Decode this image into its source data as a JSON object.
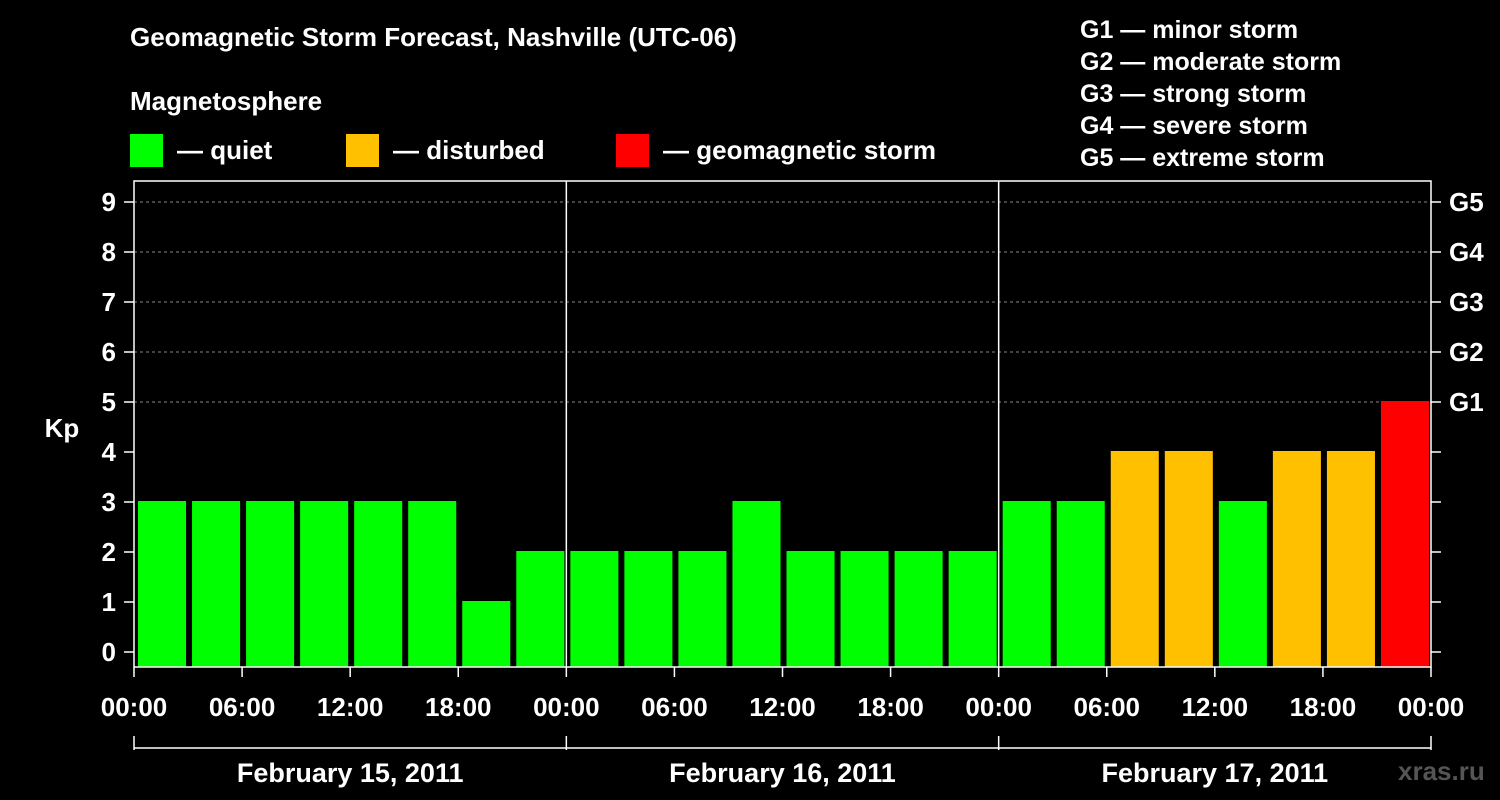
{
  "title": "Geomagnetic Storm Forecast, Nashville (UTC-06)",
  "subtitle": "Magnetosphere",
  "legend": [
    {
      "label": "— quiet",
      "color": "#00ff00"
    },
    {
      "label": "— disturbed",
      "color": "#ffc000"
    },
    {
      "label": "— geomagnetic storm",
      "color": "#ff0000"
    }
  ],
  "storm_scale": [
    "G1 — minor storm",
    "G2 — moderate storm",
    "G3 — strong storm",
    "G4 — severe storm",
    "G5 — extreme storm"
  ],
  "watermark": "xras.ru",
  "colors": {
    "quiet": "#00ff00",
    "disturbed": "#ffc000",
    "storm": "#ff0000",
    "grid": "#888888"
  },
  "chart_data": {
    "type": "bar",
    "ylabel": "Kp",
    "ylim": [
      0,
      9
    ],
    "yticks": [
      "0",
      "1",
      "2",
      "3",
      "4",
      "5",
      "6",
      "7",
      "8",
      "9"
    ],
    "right_ticks": [
      {
        "kp": 5,
        "label": "G1"
      },
      {
        "kp": 6,
        "label": "G2"
      },
      {
        "kp": 7,
        "label": "G3"
      },
      {
        "kp": 8,
        "label": "G4"
      },
      {
        "kp": 9,
        "label": "G5"
      }
    ],
    "grid": true,
    "xtick_labels": [
      "00:00",
      "06:00",
      "12:00",
      "18:00",
      "00:00",
      "06:00",
      "12:00",
      "18:00",
      "00:00",
      "06:00",
      "12:00",
      "18:00",
      "00:00"
    ],
    "days": [
      "February 15, 2011",
      "February 16, 2011",
      "February 17, 2011"
    ],
    "values": [
      3,
      3,
      3,
      3,
      3,
      3,
      1,
      2,
      2,
      2,
      2,
      3,
      2,
      2,
      2,
      2,
      3,
      3,
      4,
      4,
      3,
      4,
      4,
      5
    ],
    "levels": [
      "quiet",
      "quiet",
      "quiet",
      "quiet",
      "quiet",
      "quiet",
      "quiet",
      "quiet",
      "quiet",
      "quiet",
      "quiet",
      "quiet",
      "quiet",
      "quiet",
      "quiet",
      "quiet",
      "quiet",
      "quiet",
      "disturbed",
      "disturbed",
      "quiet",
      "disturbed",
      "disturbed",
      "storm"
    ]
  }
}
